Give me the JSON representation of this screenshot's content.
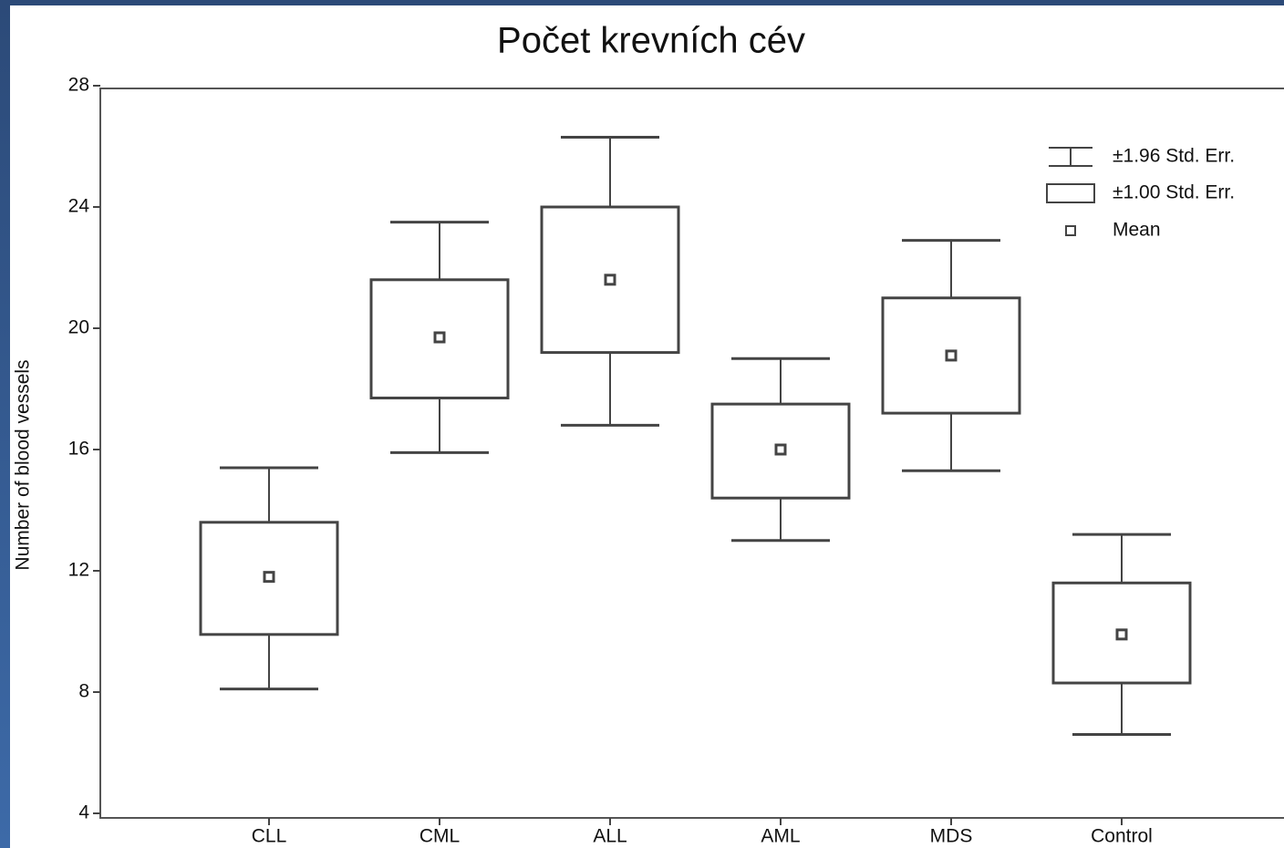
{
  "chart_data": {
    "type": "box",
    "title": "Počet krevních cév",
    "ylabel": "Number of blood vessels",
    "categories": [
      "CLL",
      "CML",
      "ALL",
      "AML",
      "MDS",
      "Control"
    ],
    "series": [
      {
        "name": "±1.96 Std. Err.",
        "low": [
          8.1,
          15.9,
          16.8,
          13.0,
          15.3,
          6.6
        ],
        "high": [
          15.4,
          23.5,
          26.3,
          19.0,
          22.9,
          13.2
        ]
      },
      {
        "name": "±1.00 Std. Err.",
        "low": [
          9.9,
          17.7,
          19.2,
          14.4,
          17.2,
          8.3
        ],
        "high": [
          13.6,
          21.6,
          24.0,
          17.5,
          21.0,
          11.6
        ]
      },
      {
        "name": "Mean",
        "values": [
          11.8,
          19.7,
          21.6,
          16.0,
          19.1,
          9.9
        ]
      }
    ],
    "ylim": [
      4,
      28
    ],
    "yticks": [
      4,
      8,
      12,
      16,
      20,
      24,
      28
    ],
    "color": "#444444",
    "legend": "upper right"
  }
}
